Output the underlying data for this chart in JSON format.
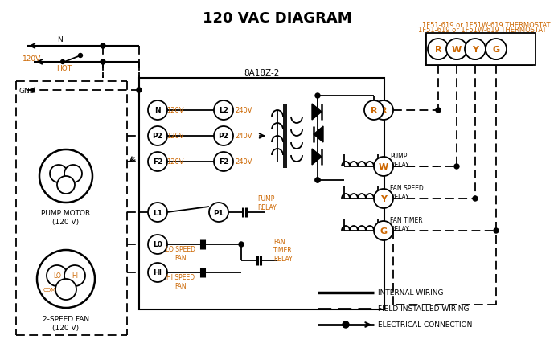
{
  "title": "120 VAC DIAGRAM",
  "title_fontsize": 14,
  "title_fontweight": "bold",
  "bg_color": "#ffffff",
  "line_color": "#000000",
  "orange_color": "#cc6600",
  "thermostat_label": "1F51-619 or 1F51W-619 THERMOSTAT",
  "board_label": "8A18Z-2",
  "terminal_labels": [
    "R",
    "W",
    "Y",
    "G"
  ],
  "motor_label": "PUMP MOTOR\n(120 V)",
  "fan_label": "2-SPEED FAN\n(120 V)"
}
